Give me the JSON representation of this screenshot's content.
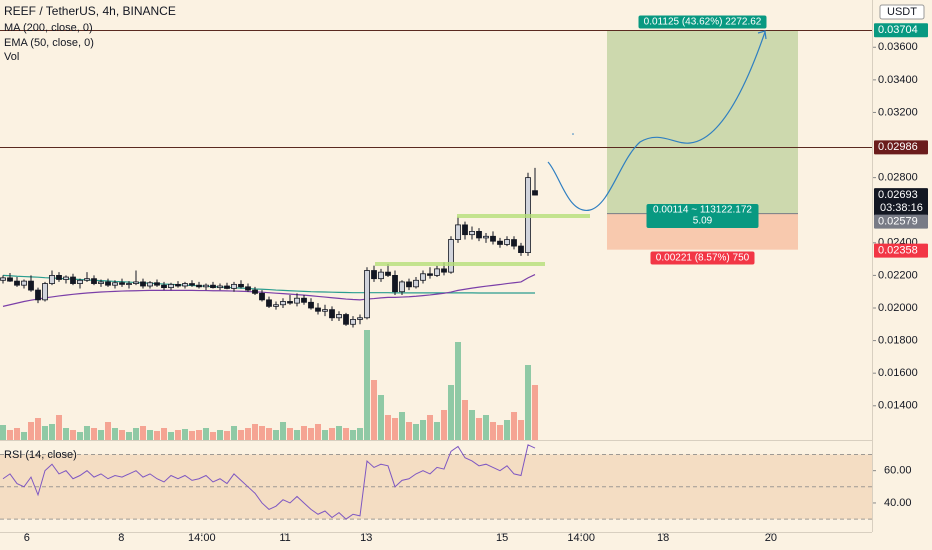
{
  "chart_data": {
    "type": "candlestick",
    "title": "REEF / TetherUS, 4h, BINANCE",
    "legend": [
      "MA (200, close, 0)",
      "EMA (50, close, 0)",
      "Vol"
    ],
    "currency": "USDT",
    "ylim": [
      0.0119,
      0.0389
    ],
    "yticks": [
      {
        "value": 0.014,
        "label": "0.01400"
      },
      {
        "value": 0.016,
        "label": "0.01600"
      },
      {
        "value": 0.018,
        "label": "0.01800"
      },
      {
        "value": 0.02,
        "label": "0.02000"
      },
      {
        "value": 0.022,
        "label": "0.02200"
      },
      {
        "value": 0.024,
        "label": "0.02400"
      },
      {
        "value": 0.028,
        "label": "0.02800"
      },
      {
        "value": 0.032,
        "label": "0.03200"
      },
      {
        "value": 0.034,
        "label": "0.03400"
      },
      {
        "value": 0.036,
        "label": "0.03600"
      }
    ],
    "xticks": [
      {
        "value": 3.4,
        "label": "6"
      },
      {
        "value": 16.9,
        "label": "8"
      },
      {
        "value": 28.4,
        "label": "14:00"
      },
      {
        "value": 40.3,
        "label": "11"
      },
      {
        "value": 51.9,
        "label": "13"
      },
      {
        "value": 71.3,
        "label": "15"
      },
      {
        "value": 82.6,
        "label": "14:00"
      },
      {
        "value": 94.3,
        "label": "18"
      },
      {
        "value": 109.7,
        "label": "20"
      }
    ],
    "up_color": "#d1d4dc",
    "down_color": "#131722",
    "candles": [
      [
        0.0217,
        0.022,
        0.0215,
        0.02185
      ],
      [
        0.02185,
        0.02215,
        0.0216,
        0.02165
      ],
      [
        0.02165,
        0.0219,
        0.0213,
        0.0214
      ],
      [
        0.0214,
        0.02175,
        0.0212,
        0.02165
      ],
      [
        0.02165,
        0.022,
        0.021,
        0.0211
      ],
      [
        0.0211,
        0.02125,
        0.0203,
        0.0205
      ],
      [
        0.0205,
        0.0216,
        0.0204,
        0.0215
      ],
      [
        0.0215,
        0.0223,
        0.0214,
        0.022
      ],
      [
        0.022,
        0.0222,
        0.0216,
        0.02175
      ],
      [
        0.02175,
        0.022,
        0.0215,
        0.0219
      ],
      [
        0.0219,
        0.0221,
        0.0214,
        0.0215
      ],
      [
        0.0215,
        0.0218,
        0.0212,
        0.0217
      ],
      [
        0.0217,
        0.0222,
        0.0216,
        0.0218
      ],
      [
        0.0218,
        0.022,
        0.0214,
        0.0215
      ],
      [
        0.0215,
        0.02175,
        0.0213,
        0.0216
      ],
      [
        0.0216,
        0.0218,
        0.0213,
        0.0214
      ],
      [
        0.0214,
        0.0217,
        0.0212,
        0.02155
      ],
      [
        0.02155,
        0.0218,
        0.0213,
        0.02145
      ],
      [
        0.02145,
        0.02165,
        0.0212,
        0.0215
      ],
      [
        0.0215,
        0.0223,
        0.0214,
        0.0216
      ],
      [
        0.0216,
        0.0218,
        0.0212,
        0.02135
      ],
      [
        0.02135,
        0.02165,
        0.0212,
        0.02155
      ],
      [
        0.02155,
        0.02175,
        0.0213,
        0.0214
      ],
      [
        0.0214,
        0.0216,
        0.0211,
        0.02125
      ],
      [
        0.02125,
        0.02155,
        0.0211,
        0.02145
      ],
      [
        0.02145,
        0.02165,
        0.02125,
        0.02135
      ],
      [
        0.02135,
        0.0216,
        0.0212,
        0.0215
      ],
      [
        0.0215,
        0.0217,
        0.0213,
        0.0214
      ],
      [
        0.0214,
        0.0216,
        0.0212,
        0.0213
      ],
      [
        0.0213,
        0.0215,
        0.0211,
        0.0214
      ],
      [
        0.0214,
        0.0216,
        0.0212,
        0.02125
      ],
      [
        0.02125,
        0.0215,
        0.0211,
        0.02135
      ],
      [
        0.02135,
        0.02155,
        0.02115,
        0.0212
      ],
      [
        0.0212,
        0.0216,
        0.021,
        0.02145
      ],
      [
        0.02145,
        0.0217,
        0.0212,
        0.0213
      ],
      [
        0.0213,
        0.0215,
        0.021,
        0.0211
      ],
      [
        0.0211,
        0.0213,
        0.0208,
        0.0209
      ],
      [
        0.0209,
        0.0211,
        0.0204,
        0.0205
      ],
      [
        0.0205,
        0.0207,
        0.02,
        0.0201
      ],
      [
        0.0201,
        0.0204,
        0.0199,
        0.0202
      ],
      [
        0.0202,
        0.0206,
        0.02,
        0.0204
      ],
      [
        0.0204,
        0.0208,
        0.0202,
        0.0203
      ],
      [
        0.0203,
        0.0209,
        0.0201,
        0.0206
      ],
      [
        0.0206,
        0.0208,
        0.0202,
        0.02035
      ],
      [
        0.02035,
        0.0206,
        0.0199,
        0.02
      ],
      [
        0.02,
        0.0203,
        0.0196,
        0.0198
      ],
      [
        0.0198,
        0.0202,
        0.0195,
        0.0199
      ],
      [
        0.0199,
        0.0201,
        0.0192,
        0.0194
      ],
      [
        0.0194,
        0.0198,
        0.0192,
        0.0196
      ],
      [
        0.0196,
        0.0197,
        0.0189,
        0.019
      ],
      [
        0.019,
        0.0195,
        0.0188,
        0.0193
      ],
      [
        0.0193,
        0.0196,
        0.019,
        0.0194
      ],
      [
        0.0194,
        0.0225,
        0.0193,
        0.0223
      ],
      [
        0.0223,
        0.0226,
        0.0216,
        0.0218
      ],
      [
        0.0218,
        0.0224,
        0.0216,
        0.0222
      ],
      [
        0.0222,
        0.0227,
        0.0219,
        0.022
      ],
      [
        0.022,
        0.0223,
        0.0208,
        0.021
      ],
      [
        0.021,
        0.0217,
        0.0208,
        0.0216
      ],
      [
        0.0216,
        0.0218,
        0.0211,
        0.0213
      ],
      [
        0.0213,
        0.0219,
        0.0212,
        0.0217
      ],
      [
        0.0217,
        0.0223,
        0.0215,
        0.0221
      ],
      [
        0.0221,
        0.0225,
        0.0218,
        0.022
      ],
      [
        0.022,
        0.0226,
        0.0219,
        0.0224
      ],
      [
        0.0224,
        0.0228,
        0.022,
        0.0222
      ],
      [
        0.0222,
        0.0244,
        0.0221,
        0.0242
      ],
      [
        0.0242,
        0.0256,
        0.024,
        0.0251
      ],
      [
        0.0251,
        0.0253,
        0.0242,
        0.0245
      ],
      [
        0.0245,
        0.025,
        0.0242,
        0.0247
      ],
      [
        0.0247,
        0.0249,
        0.0241,
        0.0243
      ],
      [
        0.0243,
        0.0246,
        0.024,
        0.0244
      ],
      [
        0.0244,
        0.0247,
        0.0239,
        0.0241
      ],
      [
        0.0241,
        0.0243,
        0.0237,
        0.0239
      ],
      [
        0.0239,
        0.0244,
        0.0238,
        0.0242
      ],
      [
        0.0242,
        0.0244,
        0.0236,
        0.0238
      ],
      [
        0.0238,
        0.024,
        0.0232,
        0.0234
      ],
      [
        0.0234,
        0.0283,
        0.0232,
        0.028
      ],
      [
        0.0272,
        0.0286,
        0.0269,
        0.02693
      ]
    ],
    "volume_ylim": [
      0,
      440
    ],
    "volume_colors": [
      "#8fc9a5",
      "#f5a493"
    ],
    "volume": [
      15,
      10,
      12,
      8,
      18,
      22,
      14,
      16,
      25,
      12,
      10,
      8,
      14,
      12,
      10,
      18,
      12,
      10,
      8,
      12,
      14,
      10,
      9,
      12,
      8,
      10,
      11,
      9,
      10,
      12,
      8,
      10,
      9,
      14,
      10,
      12,
      16,
      14,
      12,
      10,
      18,
      12,
      10,
      14,
      12,
      16,
      10,
      12,
      14,
      12,
      10,
      12,
      110,
      60,
      45,
      25,
      22,
      28,
      18,
      16,
      20,
      25,
      18,
      30,
      55,
      98,
      40,
      30,
      22,
      25,
      18,
      15,
      20,
      28,
      20,
      75,
      55
    ],
    "ma": {
      "color": "#2a9d8f",
      "values": [
        0.022,
        0.02198,
        0.02195,
        0.02193,
        0.02191,
        0.02189,
        0.02186,
        0.02184,
        0.02182,
        0.02179,
        0.02177,
        0.02175,
        0.02172,
        0.0217,
        0.02168,
        0.02166,
        0.02163,
        0.02161,
        0.02159,
        0.02156,
        0.02154,
        0.02152,
        0.0215,
        0.02147,
        0.02145,
        0.02143,
        0.0214,
        0.02138,
        0.02136,
        0.02133,
        0.02131,
        0.02129,
        0.02127,
        0.02124,
        0.02122,
        0.0212,
        0.02117,
        0.02115,
        0.02113,
        0.0211,
        0.02108,
        0.02106,
        0.02104,
        0.02102,
        0.021,
        0.02099,
        0.02098,
        0.02097,
        0.02096,
        0.02095,
        0.02094,
        0.02094,
        0.02094,
        0.02094,
        0.02094,
        0.02094,
        0.02093,
        0.02093,
        0.02093,
        0.02093,
        0.02093,
        0.02093,
        0.02093,
        0.02093,
        0.02093,
        0.02093,
        0.02093,
        0.02093,
        0.02092,
        0.02092,
        0.02092,
        0.02092,
        0.02092,
        0.02092,
        0.02092,
        0.02092,
        0.02092
      ]
    },
    "ema": {
      "color": "#7b3fa8",
      "values": [
        0.0201,
        0.0202,
        0.0203,
        0.0204,
        0.02048,
        0.02055,
        0.02062,
        0.02068,
        0.02074,
        0.02079,
        0.02084,
        0.02088,
        0.02092,
        0.02095,
        0.02098,
        0.021,
        0.02102,
        0.02104,
        0.02105,
        0.02106,
        0.02107,
        0.02108,
        0.02108,
        0.02108,
        0.02108,
        0.02108,
        0.02108,
        0.02108,
        0.02107,
        0.02107,
        0.02106,
        0.02106,
        0.02105,
        0.02104,
        0.02103,
        0.02101,
        0.02099,
        0.02097,
        0.02094,
        0.02091,
        0.02088,
        0.02085,
        0.02082,
        0.02079,
        0.02075,
        0.02071,
        0.02067,
        0.02063,
        0.02059,
        0.02055,
        0.02052,
        0.0205,
        0.02055,
        0.02058,
        0.02062,
        0.02065,
        0.02065,
        0.02067,
        0.02069,
        0.02072,
        0.02076,
        0.0208,
        0.02085,
        0.0209,
        0.02098,
        0.02108,
        0.02115,
        0.02122,
        0.02128,
        0.02134,
        0.02139,
        0.02144,
        0.0215,
        0.02155,
        0.0216,
        0.02185,
        0.02205
      ]
    },
    "rsi": {
      "title": "RSI (14, close)",
      "color": "#7e57c2",
      "ylim": [
        22,
        79
      ],
      "yticks": [
        {
          "value": 40,
          "label": "40.00"
        },
        {
          "value": 60,
          "label": "60.00"
        }
      ],
      "levels": [
        30,
        50,
        70
      ],
      "values": [
        55,
        58,
        52,
        50,
        56,
        45,
        60,
        64,
        58,
        60,
        55,
        57,
        60,
        56,
        58,
        55,
        57,
        56,
        58,
        60,
        56,
        58,
        55,
        53,
        57,
        55,
        57,
        54,
        55,
        57,
        53,
        55,
        52,
        58,
        54,
        50,
        46,
        40,
        36,
        38,
        42,
        40,
        44,
        40,
        36,
        33,
        35,
        31,
        34,
        30,
        33,
        32,
        66,
        62,
        64,
        63,
        50,
        54,
        55,
        58,
        60,
        58,
        62,
        61,
        72,
        75,
        68,
        66,
        63,
        64,
        62,
        60,
        63,
        58,
        57,
        76,
        74
      ]
    },
    "price_lines": [
      {
        "value": 0.03704,
        "color": "#089981"
      },
      {
        "value": 0.02986,
        "color": "#6b1c1c"
      }
    ],
    "last_price": {
      "value": 0.02693,
      "countdown": "03:38:16",
      "color": "#131722"
    },
    "position": {
      "target": 0.03704,
      "entry": 0.02579,
      "stop": 0.02358,
      "entry_color": "#787b86",
      "stop_color": "#f23645",
      "target_label": "0.01125 (43.62%) 2272.62",
      "entry_label": [
        "0.00114 ~ 113122.172",
        "5.09"
      ],
      "stop_label": "0.00221 (8.57%) 750"
    }
  }
}
